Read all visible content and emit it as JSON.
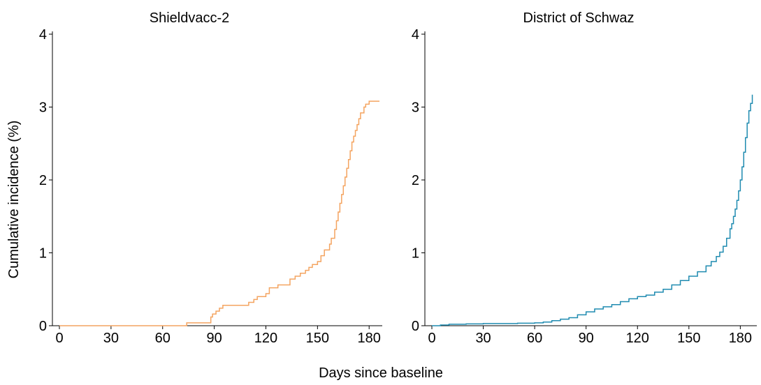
{
  "figure": {
    "ylabel": "Cumulative incidence (%)",
    "xlabel": "Days since baseline"
  },
  "chart_data": [
    {
      "type": "line",
      "step": true,
      "title": "Shieldvacc-2",
      "color": "#f4a460",
      "xlim": [
        0,
        186
      ],
      "ylim": [
        0,
        4
      ],
      "xticks": [
        0,
        30,
        60,
        90,
        120,
        150,
        180
      ],
      "yticks": [
        0,
        1,
        2,
        3,
        4
      ],
      "grid": false,
      "series": [
        {
          "x": [
            0,
            74,
            74,
            88,
            88,
            89,
            89,
            91,
            91,
            93,
            93,
            95,
            95,
            110,
            110,
            113,
            113,
            115,
            115,
            120,
            120,
            122,
            122,
            127,
            127,
            134,
            134,
            137,
            137,
            140,
            140,
            143,
            143,
            145,
            145,
            147,
            147,
            150,
            150,
            152,
            152,
            154,
            154,
            157,
            157,
            158,
            158,
            160,
            160,
            161,
            161,
            162,
            162,
            163,
            163,
            164,
            164,
            165,
            165,
            166,
            166,
            167,
            167,
            168,
            168,
            169,
            169,
            170,
            170,
            171,
            171,
            172,
            172,
            173,
            173,
            174,
            174,
            175,
            175,
            177,
            177,
            178,
            178,
            180,
            180,
            182,
            182,
            186
          ],
          "y": [
            0,
            0,
            0.04,
            0.04,
            0.12,
            0.12,
            0.16,
            0.16,
            0.2,
            0.2,
            0.24,
            0.24,
            0.28,
            0.28,
            0.32,
            0.32,
            0.36,
            0.36,
            0.4,
            0.4,
            0.44,
            0.44,
            0.52,
            0.52,
            0.56,
            0.56,
            0.64,
            0.64,
            0.68,
            0.68,
            0.72,
            0.72,
            0.76,
            0.76,
            0.8,
            0.8,
            0.84,
            0.84,
            0.88,
            0.88,
            0.96,
            0.96,
            1.04,
            1.04,
            1.12,
            1.12,
            1.2,
            1.2,
            1.32,
            1.32,
            1.44,
            1.44,
            1.56,
            1.56,
            1.68,
            1.68,
            1.8,
            1.8,
            1.92,
            1.92,
            2.04,
            2.04,
            2.16,
            2.16,
            2.28,
            2.28,
            2.4,
            2.4,
            2.52,
            2.52,
            2.6,
            2.6,
            2.68,
            2.68,
            2.76,
            2.76,
            2.84,
            2.84,
            2.92,
            2.92,
            3.0,
            3.0,
            3.04,
            3.04,
            3.08,
            3.08,
            3.08,
            3.08
          ]
        }
      ]
    },
    {
      "type": "line",
      "step": true,
      "title": "District of Schwaz",
      "color": "#1f8bb0",
      "xlim": [
        0,
        188
      ],
      "ylim": [
        0,
        4
      ],
      "xticks": [
        0,
        30,
        60,
        90,
        120,
        150,
        180
      ],
      "yticks": [
        0,
        1,
        2,
        3,
        4
      ],
      "grid": false,
      "series": [
        {
          "x": [
            0,
            5,
            10,
            20,
            30,
            40,
            50,
            60,
            65,
            70,
            75,
            80,
            85,
            90,
            95,
            100,
            105,
            110,
            115,
            120,
            125,
            130,
            135,
            140,
            145,
            150,
            155,
            160,
            163,
            166,
            168,
            170,
            172,
            174,
            175,
            176,
            177,
            178,
            179,
            180,
            181,
            182,
            183,
            184,
            185,
            186,
            187
          ],
          "y": [
            0,
            0.01,
            0.02,
            0.025,
            0.03,
            0.03,
            0.035,
            0.04,
            0.05,
            0.07,
            0.09,
            0.11,
            0.15,
            0.19,
            0.23,
            0.26,
            0.29,
            0.33,
            0.37,
            0.4,
            0.42,
            0.46,
            0.5,
            0.56,
            0.62,
            0.68,
            0.74,
            0.82,
            0.88,
            0.95,
            1.01,
            1.09,
            1.2,
            1.33,
            1.4,
            1.5,
            1.6,
            1.72,
            1.85,
            2.0,
            2.18,
            2.38,
            2.58,
            2.78,
            2.95,
            3.05,
            3.17
          ]
        }
      ]
    }
  ]
}
